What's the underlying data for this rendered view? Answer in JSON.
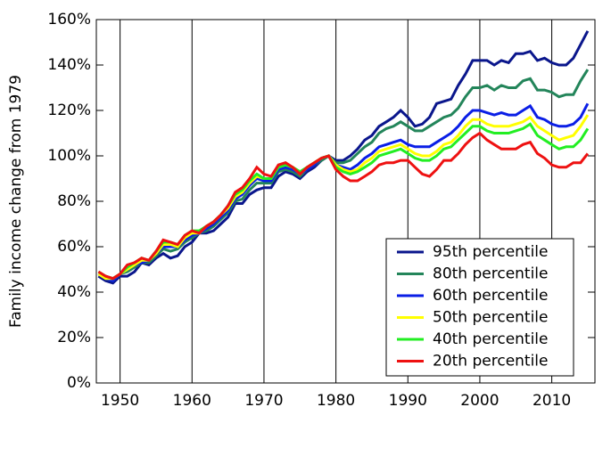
{
  "chart_data": {
    "type": "line",
    "y_label": "Family income change from 1979",
    "x": [
      1947,
      1948,
      1949,
      1950,
      1951,
      1952,
      1953,
      1954,
      1955,
      1956,
      1957,
      1958,
      1959,
      1960,
      1961,
      1962,
      1963,
      1964,
      1965,
      1966,
      1967,
      1968,
      1969,
      1970,
      1971,
      1972,
      1973,
      1974,
      1975,
      1976,
      1977,
      1978,
      1979,
      1980,
      1981,
      1982,
      1983,
      1984,
      1985,
      1986,
      1987,
      1988,
      1989,
      1990,
      1991,
      1992,
      1993,
      1994,
      1995,
      1996,
      1997,
      1998,
      1999,
      2000,
      2001,
      2002,
      2003,
      2004,
      2005,
      2006,
      2007,
      2008,
      2009,
      2010,
      2011,
      2012,
      2013,
      2014,
      2015
    ],
    "series": [
      {
        "name": "95th percentile",
        "color": "#0a168c",
        "values": [
          47,
          45,
          44,
          47,
          47,
          49,
          53,
          52,
          55,
          57,
          55,
          56,
          60,
          62,
          66,
          66,
          67,
          70,
          73,
          79,
          79,
          83,
          85,
          86,
          86,
          91,
          93,
          92,
          90,
          93,
          95,
          98,
          100,
          98,
          98,
          100,
          103,
          107,
          109,
          113,
          115,
          117,
          120,
          117,
          113,
          114,
          117,
          123,
          124,
          125,
          131,
          136,
          142,
          142,
          142,
          140,
          142,
          141,
          145,
          145,
          146,
          142,
          143,
          141,
          140,
          140,
          143,
          149,
          155
        ]
      },
      {
        "name": "80th percentile",
        "color": "#23855a",
        "values": [
          48,
          46,
          45,
          48,
          49,
          51,
          53,
          53,
          56,
          59,
          58,
          59,
          62,
          64,
          66,
          67,
          69,
          72,
          75,
          80,
          81,
          85,
          88,
          88,
          88,
          93,
          94,
          93,
          91,
          94,
          96,
          98,
          100,
          97,
          97,
          98,
          101,
          104,
          106,
          110,
          112,
          113,
          115,
          113,
          111,
          111,
          113,
          115,
          117,
          118,
          121,
          126,
          130,
          130,
          131,
          129,
          131,
          130,
          130,
          133,
          134,
          129,
          129,
          128,
          126,
          127,
          127,
          133,
          138
        ]
      },
      {
        "name": "60th percentile",
        "color": "#0a1ee6",
        "values": [
          48,
          46,
          45,
          48,
          50,
          52,
          53,
          54,
          57,
          60,
          60,
          60,
          63,
          65,
          66,
          68,
          70,
          73,
          76,
          81,
          83,
          87,
          90,
          89,
          89,
          94,
          95,
          94,
          92,
          94,
          96,
          99,
          100,
          96,
          95,
          94,
          96,
          99,
          101,
          104,
          105,
          106,
          107,
          105,
          104,
          104,
          104,
          106,
          108,
          110,
          113,
          117,
          120,
          120,
          119,
          118,
          119,
          118,
          118,
          120,
          122,
          117,
          116,
          114,
          113,
          113,
          114,
          117,
          123
        ]
      },
      {
        "name": "50th percentile",
        "color": "#ffff00",
        "values": [
          48,
          46,
          46,
          48,
          50,
          52,
          54,
          54,
          57,
          61,
          61,
          60,
          64,
          66,
          66,
          69,
          71,
          74,
          77,
          82,
          84,
          88,
          91,
          90,
          90,
          95,
          96,
          95,
          92,
          95,
          97,
          99,
          100,
          96,
          94,
          93,
          94,
          97,
          99,
          102,
          103,
          104,
          105,
          103,
          101,
          100,
          100,
          102,
          105,
          106,
          109,
          113,
          116,
          116,
          114,
          113,
          113,
          113,
          114,
          115,
          117,
          113,
          111,
          109,
          107,
          108,
          109,
          113,
          118
        ]
      },
      {
        "name": "40th percentile",
        "color": "#22ee22",
        "values": [
          49,
          47,
          46,
          48,
          51,
          53,
          55,
          54,
          58,
          62,
          62,
          61,
          65,
          67,
          67,
          69,
          71,
          74,
          78,
          83,
          85,
          89,
          92,
          90,
          90,
          95,
          96,
          95,
          93,
          95,
          97,
          99,
          100,
          95,
          93,
          92,
          93,
          95,
          97,
          100,
          101,
          102,
          103,
          101,
          99,
          98,
          98,
          100,
          103,
          104,
          107,
          110,
          113,
          113,
          111,
          110,
          110,
          110,
          111,
          112,
          114,
          109,
          107,
          105,
          103,
          104,
          104,
          107,
          112
        ]
      },
      {
        "name": "20th percentile",
        "color": "#ee1111",
        "values": [
          49,
          47,
          46,
          48,
          52,
          53,
          55,
          54,
          58,
          63,
          62,
          61,
          65,
          67,
          66,
          69,
          71,
          74,
          78,
          84,
          86,
          90,
          95,
          92,
          91,
          96,
          97,
          95,
          92,
          95,
          97,
          99,
          100,
          94,
          91,
          89,
          89,
          91,
          93,
          96,
          97,
          97,
          98,
          98,
          95,
          92,
          91,
          94,
          98,
          98,
          101,
          105,
          108,
          110,
          107,
          105,
          103,
          103,
          103,
          105,
          106,
          101,
          99,
          96,
          95,
          95,
          97,
          97,
          101
        ]
      }
    ],
    "xlim": [
      1946.7,
      2016
    ],
    "xticks": [
      1950,
      1960,
      1970,
      1980,
      1990,
      2000,
      2010
    ],
    "ylim": [
      0,
      160
    ],
    "yticks": [
      {
        "value": 0,
        "label": "0%"
      },
      {
        "value": 20,
        "label": "20%"
      },
      {
        "value": 40,
        "label": "40%"
      },
      {
        "value": 60,
        "label": "60%"
      },
      {
        "value": 80,
        "label": "80%"
      },
      {
        "value": 100,
        "label": "100%"
      },
      {
        "value": 120,
        "label": "120%"
      },
      {
        "value": 140,
        "label": "140%"
      },
      {
        "value": 160,
        "label": "160%"
      }
    ],
    "grid": "x",
    "legend": "lower right"
  }
}
